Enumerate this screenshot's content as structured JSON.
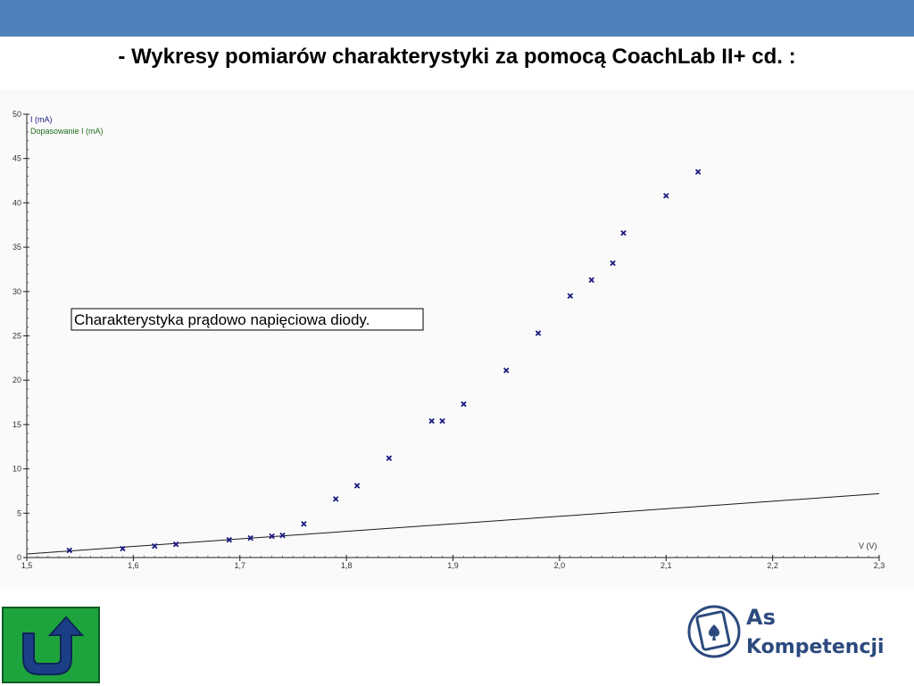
{
  "slide": {
    "title": "- Wykresy pomiarów charakterystyki za pomocą CoachLab II+ cd. :"
  },
  "logo": {
    "line1": "As",
    "line2": "Kompetencji"
  },
  "colors": {
    "bar": "#4f81bd",
    "marker": "#1a1a80",
    "fit_line": "#1a1a1a",
    "legend_fit": "#1d6b1d"
  },
  "icons": {
    "home": "return-arrow-icon",
    "logo": "logo-icon"
  },
  "chart_data": {
    "type": "scatter",
    "xlabel": "V (V)",
    "ylabel": "",
    "xlim": [
      1.5,
      2.3
    ],
    "ylim": [
      0,
      50
    ],
    "x_ticks": [
      "1,5",
      "1,6",
      "1,7",
      "1,8",
      "1,9",
      "2,0",
      "2,1",
      "2,2",
      "2,3"
    ],
    "y_ticks": [
      "0",
      "5",
      "10",
      "15",
      "20",
      "25",
      "30",
      "35",
      "40",
      "45",
      "50"
    ],
    "grid": false,
    "legend_position": "top-left",
    "annotation": "Charakterystyka prądowo napięciowa diody.",
    "series": [
      {
        "name": "I (mA)",
        "marker": "x",
        "points": [
          [
            1.54,
            0.8
          ],
          [
            1.59,
            1.0
          ],
          [
            1.62,
            1.3
          ],
          [
            1.64,
            1.5
          ],
          [
            1.69,
            2.0
          ],
          [
            1.71,
            2.2
          ],
          [
            1.73,
            2.4
          ],
          [
            1.74,
            2.5
          ],
          [
            1.76,
            3.8
          ],
          [
            1.79,
            6.6
          ],
          [
            1.81,
            8.1
          ],
          [
            1.84,
            11.2
          ],
          [
            1.88,
            15.4
          ],
          [
            1.89,
            15.4
          ],
          [
            1.91,
            17.3
          ],
          [
            1.95,
            21.1
          ],
          [
            1.98,
            25.3
          ],
          [
            2.01,
            29.5
          ],
          [
            2.03,
            31.3
          ],
          [
            2.05,
            33.2
          ],
          [
            2.06,
            36.6
          ],
          [
            2.1,
            40.8
          ],
          [
            2.13,
            43.5
          ]
        ]
      },
      {
        "name": "Dopasowanie I (mA)",
        "marker": "line",
        "points": [
          [
            1.5,
            0.4
          ],
          [
            2.3,
            7.2
          ]
        ]
      }
    ]
  }
}
